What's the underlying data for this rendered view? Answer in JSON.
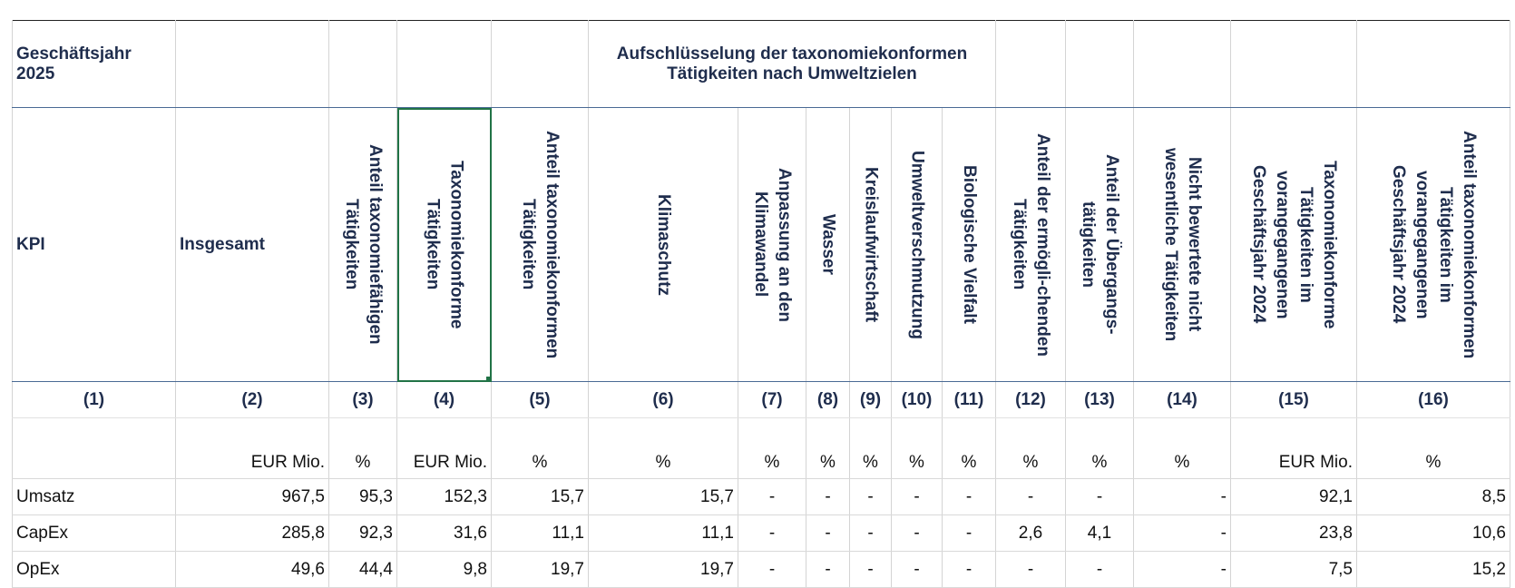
{
  "header": {
    "fiscal_year": [
      "Geschäftsjahr",
      "2025"
    ],
    "breakdown": [
      "Aufschlüsselung der taxonomiekonformen",
      "Tätigkeiten nach Umweltzielen"
    ]
  },
  "table": {
    "columns": [
      {
        "label": [
          "KPI"
        ],
        "number": "(1)"
      },
      {
        "label": [
          "Insgesamt"
        ],
        "number": "(2)",
        "unit": "EUR Mio."
      },
      {
        "label": [
          "Anteil taxonomiefähigen",
          "Tätigkeiten"
        ],
        "number": "(3)",
        "unit": "%"
      },
      {
        "label": [
          "Taxonomiekonforme",
          "Tätigkeiten"
        ],
        "number": "(4)",
        "unit": "EUR Mio."
      },
      {
        "label": [
          "Anteil taxonomiekonformen",
          "Tätigkeiten"
        ],
        "number": "(5)",
        "unit": "%"
      },
      {
        "label": [
          "Klimaschutz"
        ],
        "number": "(6)",
        "unit": "%"
      },
      {
        "label": [
          "Anpassung an den",
          "Klimawandel"
        ],
        "number": "(7)",
        "unit": "%"
      },
      {
        "label": [
          "Wasser"
        ],
        "number": "(8)",
        "unit": "%"
      },
      {
        "label": [
          "Kreislaufwirtschaft"
        ],
        "number": "(9)",
        "unit": "%"
      },
      {
        "label": [
          "Umweltverschmutzung"
        ],
        "number": "(10)",
        "unit": "%"
      },
      {
        "label": [
          "Biologische Vielfalt"
        ],
        "number": "(11)",
        "unit": "%"
      },
      {
        "label": [
          "Anteil der ermögli-chenden",
          "Tätigkeiten"
        ],
        "number": "(12)",
        "unit": "%"
      },
      {
        "label": [
          "Anteil der Übergangs-",
          "tätigkeiten"
        ],
        "number": "(13)",
        "unit": "%"
      },
      {
        "label": [
          "Nicht bewertete nicht",
          "wesentliche Tätigkeiten"
        ],
        "number": "(14)",
        "unit": "%"
      },
      {
        "label": [
          "Taxonomiekonforme",
          "Tätigkeiten im",
          "vorangegangenen",
          "Geschäftsjahr 2024"
        ],
        "number": "(15)",
        "unit": "EUR Mio."
      },
      {
        "label": [
          "Anteil taxonomiekonformen",
          "Tätigkeiten im",
          "vorangegangenen",
          "Geschäftsjahr 2024"
        ],
        "number": "(16)",
        "unit": "%"
      }
    ],
    "rows": [
      {
        "kpi": "Umsatz",
        "values": [
          "967,5",
          "95,3",
          "152,3",
          "15,7",
          "15,7",
          "-",
          "-",
          "-",
          "-",
          "-",
          "-",
          "-",
          "-",
          "92,1",
          "8,5"
        ]
      },
      {
        "kpi": "CapEx",
        "values": [
          "285,8",
          "92,3",
          "31,6",
          "11,1",
          "11,1",
          "-",
          "-",
          "-",
          "-",
          "-",
          "2,6",
          "4,1",
          "-",
          "23,8",
          "10,6"
        ]
      },
      {
        "kpi": "OpEx",
        "values": [
          "49,6",
          "44,4",
          "9,8",
          "19,7",
          "19,7",
          "-",
          "-",
          "-",
          "-",
          "-",
          "-",
          "-",
          "-",
          "7,5",
          "15,2"
        ]
      }
    ]
  }
}
